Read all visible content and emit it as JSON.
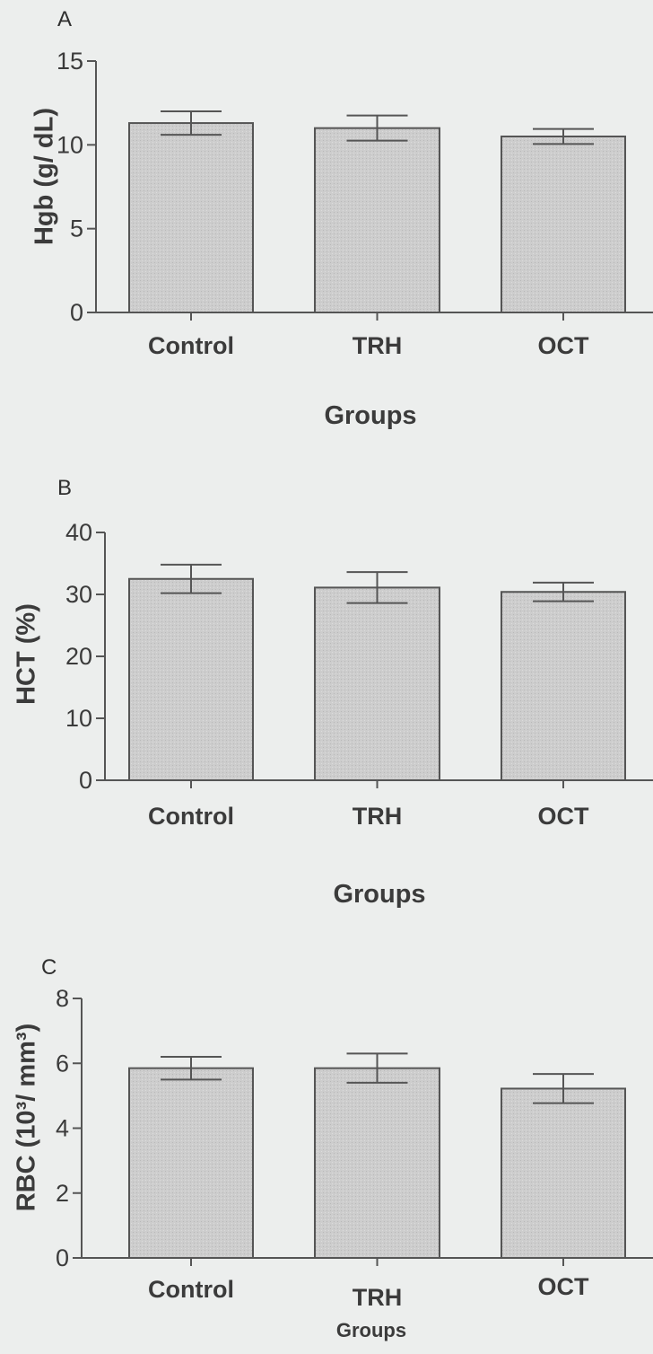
{
  "chart_data": [
    {
      "type": "bar",
      "panel": "A",
      "categories": [
        "Control",
        "TRH",
        "OCT"
      ],
      "values": [
        11.3,
        11.0,
        10.5
      ],
      "error": [
        0.7,
        0.75,
        0.45
      ],
      "ylabel": "Hgb (g/ dL)",
      "xlabel": "Groups",
      "ylim": [
        0,
        15
      ],
      "yticks": [
        0,
        5,
        10,
        15
      ],
      "colors": {
        "bar_fill": "#cdcdcd",
        "stroke": "#555555"
      }
    },
    {
      "type": "bar",
      "panel": "B",
      "categories": [
        "Control",
        "TRH",
        "OCT"
      ],
      "values": [
        32.5,
        31.1,
        30.4
      ],
      "error": [
        2.3,
        2.5,
        1.5
      ],
      "ylabel": "HCT (%)",
      "xlabel": "Groups",
      "ylim": [
        0,
        40
      ],
      "yticks": [
        0,
        10,
        20,
        30,
        40
      ],
      "colors": {
        "bar_fill": "#cdcdcd",
        "stroke": "#555555"
      }
    },
    {
      "type": "bar",
      "panel": "C",
      "categories": [
        "Control",
        "TRH",
        "OCT"
      ],
      "values": [
        5.85,
        5.85,
        5.22
      ],
      "error": [
        0.35,
        0.45,
        0.45
      ],
      "ylabel": "RBC (10³/ mm³)",
      "xlabel": "Groups",
      "ylim": [
        0,
        8
      ],
      "yticks": [
        0,
        2,
        4,
        6,
        8
      ],
      "colors": {
        "bar_fill": "#cdcdcd",
        "stroke": "#555555"
      }
    }
  ]
}
